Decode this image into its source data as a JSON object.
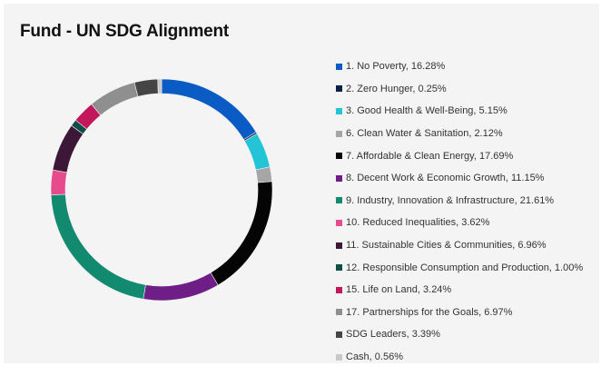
{
  "title": "Fund - UN SDG Alignment",
  "chart_data": {
    "type": "pie",
    "style": "donut",
    "title": "Fund - UN SDG Alignment",
    "legend_position": "right",
    "unit": "%",
    "slices": [
      {
        "label": "1. No Poverty, 16.28%",
        "name": "1. No Poverty",
        "value": 16.28,
        "color": "#0a5cc4"
      },
      {
        "label": "2. Zero Hunger, 0.25%",
        "name": "2. Zero Hunger",
        "value": 0.25,
        "color": "#0b1f4b"
      },
      {
        "label": "3. Good Health & Well-Being, 5.15%",
        "name": "3. Good Health & Well-Being",
        "value": 5.15,
        "color": "#22c4d6"
      },
      {
        "label": "6. Clean Water & Sanitation, 2.12%",
        "name": "6. Clean Water & Sanitation",
        "value": 2.12,
        "color": "#a6a6a6"
      },
      {
        "label": "7. Affordable & Clean Energy, 17.69%",
        "name": "7. Affordable & Clean Energy",
        "value": 17.69,
        "color": "#050505"
      },
      {
        "label": "8. Decent Work & Economic Growth, 11.15%",
        "name": "8. Decent Work & Economic Growth",
        "value": 11.15,
        "color": "#6e1e86"
      },
      {
        "label": "9. Industry, Innovation & Infrastructure, 21.61%",
        "name": "9. Industry, Innovation & Infrastructure",
        "value": 21.61,
        "color": "#128a70"
      },
      {
        "label": "10. Reduced Inequalities, 3.62%",
        "name": "10. Reduced Inequalities",
        "value": 3.62,
        "color": "#e64b8e"
      },
      {
        "label": "11. Sustainable Cities & Communities, 6.96%",
        "name": "11. Sustainable Cities & Communities",
        "value": 6.96,
        "color": "#3d1737"
      },
      {
        "label": "12. Responsible Consumption and Production, 1.00%",
        "name": "12. Responsible Consumption and Production",
        "value": 1.0,
        "color": "#0f4f48"
      },
      {
        "label": "15. Life on Land, 3.24%",
        "name": "15. Life on Land",
        "value": 3.24,
        "color": "#c2185b"
      },
      {
        "label": "17. Partnerships for the Goals, 6.97%",
        "name": "17. Partnerships for the Goals",
        "value": 6.97,
        "color": "#8f8f8f"
      },
      {
        "label": "SDG Leaders, 3.39%",
        "name": "SDG Leaders",
        "value": 3.39,
        "color": "#454545"
      },
      {
        "label": "Cash, 0.56%",
        "name": "Cash",
        "value": 0.56,
        "color": "#c8c8c8"
      }
    ]
  }
}
